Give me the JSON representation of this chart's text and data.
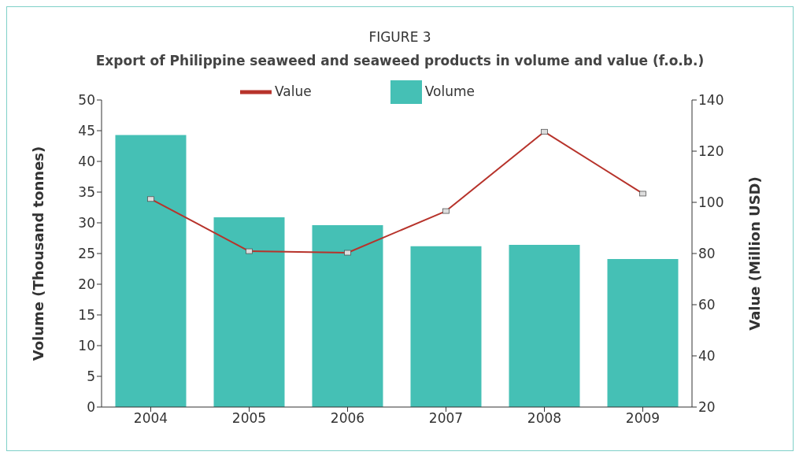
{
  "chart_data": {
    "type": "bar",
    "title": "FIGURE 3",
    "subtitle": "Export of Philippine seaweed and seaweed products in volume and value (f.o.b.)",
    "ylabel": "Volume (Thousand tonnes)",
    "y2label": "Value (Million USD)",
    "categories": [
      "2004",
      "2005",
      "2006",
      "2007",
      "2008",
      "2009"
    ],
    "series": [
      {
        "name": "Value",
        "type": "line",
        "axis": "y2",
        "color": "#b7332b",
        "marker": "square",
        "values": [
          101.3,
          80.9,
          80.3,
          96.6,
          127.6,
          103.4
        ]
      },
      {
        "name": "Volume",
        "color": "#45c0b5",
        "values": [
          44.3,
          30.9,
          29.6,
          26.2,
          26.4,
          24.1
        ]
      }
    ],
    "ylim": [
      0,
      50
    ],
    "yticks": [
      0,
      5,
      10,
      15,
      20,
      25,
      30,
      35,
      40,
      45,
      50
    ],
    "y2lim": [
      20,
      140
    ],
    "y2ticks": [
      20,
      40,
      60,
      80,
      100,
      120,
      140
    ],
    "legend": "top",
    "grid": false
  }
}
